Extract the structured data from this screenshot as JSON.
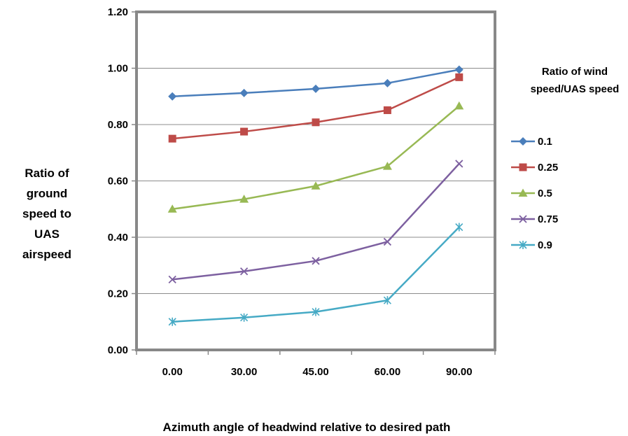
{
  "chart_data": {
    "type": "line",
    "categories": [
      "0.00",
      "30.00",
      "45.00",
      "60.00",
      "90.00"
    ],
    "ylim": [
      0,
      1.2
    ],
    "yticks": [
      "0.00",
      "0.20",
      "0.40",
      "0.60",
      "0.80",
      "1.00",
      "1.20"
    ],
    "xlabel": "Azimuth angle of headwind relative to desired path",
    "ylabel_lines": [
      "Ratio of",
      "ground",
      "speed to",
      "UAS",
      "airspeed"
    ],
    "legend_title_lines": [
      "Ratio of wind",
      "speed/UAS speed"
    ],
    "legend_position": "right",
    "grid": true,
    "series": [
      {
        "name": "0.1",
        "color": "#4a7ebb",
        "marker": "diamond",
        "values": [
          0.9,
          0.912,
          0.927,
          0.947,
          0.995
        ]
      },
      {
        "name": "0.25",
        "color": "#be4b48",
        "marker": "square",
        "values": [
          0.75,
          0.775,
          0.808,
          0.851,
          0.968
        ]
      },
      {
        "name": "0.5",
        "color": "#98b954",
        "marker": "triangle",
        "values": [
          0.5,
          0.535,
          0.582,
          0.652,
          0.866
        ]
      },
      {
        "name": "0.75",
        "color": "#7d60a0",
        "marker": "x",
        "values": [
          0.25,
          0.279,
          0.316,
          0.384,
          0.661
        ]
      },
      {
        "name": "0.9",
        "color": "#46aac5",
        "marker": "star",
        "values": [
          0.1,
          0.115,
          0.135,
          0.176,
          0.436
        ]
      }
    ]
  }
}
